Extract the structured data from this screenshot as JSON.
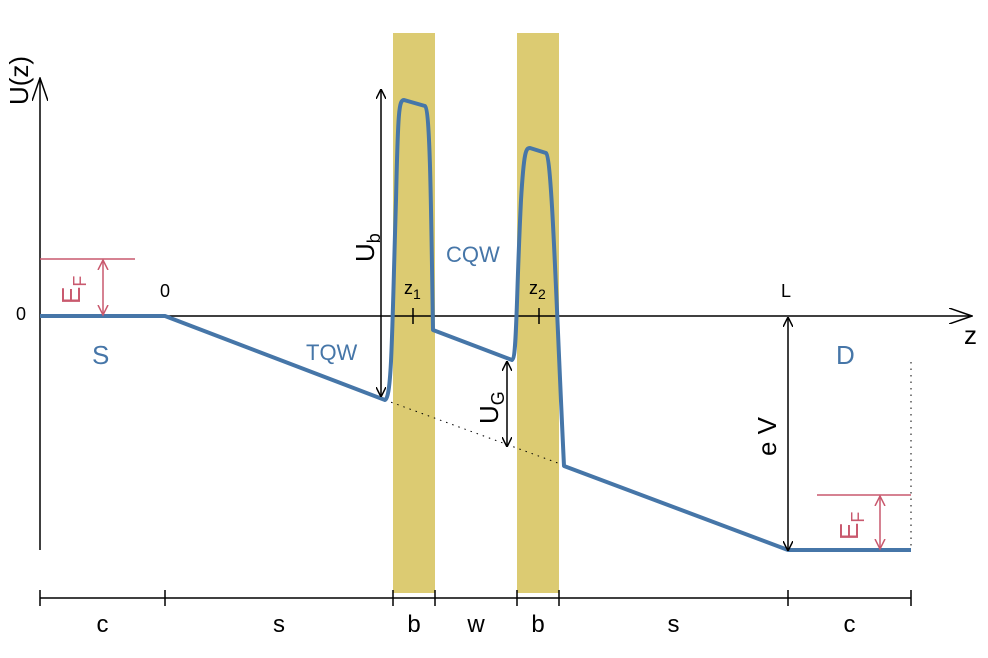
{
  "axes": {
    "y_label": "U(z)",
    "x_label": "z",
    "y_origin": "0",
    "x_origin": "0",
    "x_end": "L"
  },
  "regions": {
    "source": "S",
    "drain": "D"
  },
  "wells": {
    "triangular": "TQW",
    "central": "CQW"
  },
  "annotations": {
    "barrier_height": {
      "symbol": "U",
      "sub": "b"
    },
    "gate": {
      "symbol": "U",
      "sub": "G"
    },
    "fermi_source": {
      "symbol": "E",
      "sub": "F"
    },
    "fermi_drain": {
      "symbol": "E",
      "sub": "F"
    },
    "bias": "e V",
    "barrier1_pos": {
      "symbol": "z",
      "sub": "1"
    },
    "barrier2_pos": {
      "symbol": "z",
      "sub": "2"
    }
  },
  "segments": [
    "c",
    "s",
    "b",
    "w",
    "b",
    "s",
    "c"
  ]
}
